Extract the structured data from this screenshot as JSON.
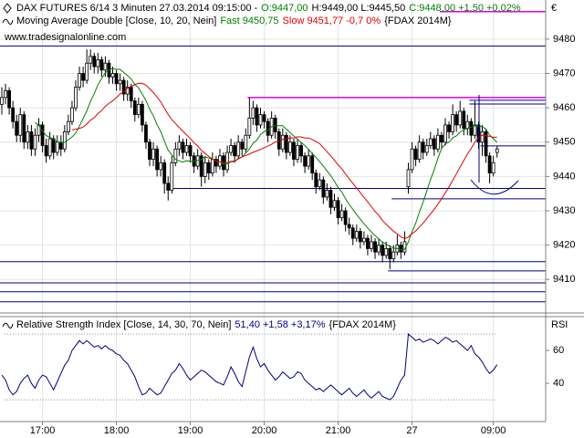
{
  "chart_data": [
    {
      "type": "candlestick",
      "title_parts": [
        {
          "text": "DAX FUTURES 6/14 3 Minuten  27.03.2014 09:15:00 -",
          "color": "#000000"
        },
        {
          "text": "O:9447,00",
          "color": "#008000"
        },
        {
          "text": "H:9449,00 L:9445,50",
          "color": "#000000"
        },
        {
          "text": "C:9448,00 +1,50 +0,02%",
          "color": "#008000"
        }
      ],
      "indicator_parts": [
        {
          "text": "Moving Average Double [Close, 10, 20, Nein]",
          "color": "#000000"
        },
        {
          "text": "Fast 9450,75",
          "color": "#008000"
        },
        {
          "text": "Slow 9451,77 -0,7 0%",
          "color": "#e00000"
        },
        {
          "text": "{FDAX 2014M}",
          "color": "#000000"
        }
      ],
      "source": "www.tradesignalonline.com",
      "unit": "€",
      "categories": [
        null,
        null,
        null,
        null,
        null,
        null,
        null,
        null,
        null,
        null,
        null,
        "17:00",
        null,
        null,
        null,
        null,
        null,
        null,
        null,
        null,
        null,
        null,
        null,
        null,
        null,
        null,
        null,
        null,
        null,
        null,
        null,
        "18:00",
        null,
        null,
        null,
        null,
        null,
        null,
        null,
        null,
        null,
        null,
        null,
        null,
        null,
        null,
        null,
        null,
        null,
        null,
        null,
        "19:00",
        null,
        null,
        null,
        null,
        null,
        null,
        null,
        null,
        null,
        null,
        null,
        null,
        null,
        null,
        null,
        null,
        null,
        null,
        null,
        "20:00",
        null,
        null,
        null,
        null,
        null,
        null,
        null,
        null,
        null,
        null,
        null,
        null,
        null,
        null,
        null,
        null,
        null,
        null,
        null,
        "21:00",
        null,
        null,
        null,
        null,
        null,
        null,
        null,
        null,
        null,
        null,
        null,
        null,
        null,
        null,
        null,
        null,
        null,
        null,
        null,
        "27",
        null,
        null,
        null,
        null,
        null,
        null,
        null,
        null,
        null,
        null,
        null,
        null,
        null,
        null,
        null,
        null,
        null,
        null,
        null,
        null,
        null,
        "09:00",
        null
      ],
      "open": [
        9461,
        9463,
        9465,
        9460,
        9456,
        9452,
        9458,
        9450,
        9453,
        9448,
        9452,
        9455,
        9449,
        9446,
        9451,
        9447,
        9450,
        9448,
        9453,
        9456,
        9460,
        9466,
        9470,
        9468,
        9473,
        9475,
        9472,
        9474,
        9471,
        9473,
        9469,
        9470,
        9467,
        9468,
        9464,
        9466,
        9462,
        9458,
        9461,
        9455,
        9450,
        9445,
        9448,
        9442,
        9444,
        9438,
        9436,
        9444,
        9448,
        9450,
        9447,
        9449,
        9446,
        9443,
        9446,
        9440,
        9444,
        9441,
        9445,
        9443,
        9446,
        9442,
        9447,
        9449,
        9446,
        9450,
        9448,
        9452,
        9457,
        9460,
        9455,
        9458,
        9456,
        9452,
        9457,
        9453,
        9448,
        9452,
        9447,
        9450,
        9445,
        9449,
        9446,
        9443,
        9446,
        9441,
        9437,
        9439,
        9434,
        9436,
        9431,
        9433,
        9428,
        9430,
        9426,
        9425,
        9422,
        9424,
        9421,
        9422,
        9419,
        9421,
        9418,
        9420,
        9417,
        9419,
        9416,
        9418,
        9420,
        9418,
        9437,
        9442,
        9448,
        9445,
        9450,
        9447,
        9449,
        9451,
        9448,
        9452,
        9450,
        9455,
        9453,
        9458,
        9455,
        9459,
        9454,
        9456,
        9452,
        9455,
        9450,
        9453,
        9446,
        9441,
        9447
      ],
      "high": [
        9466,
        9467,
        9466,
        9462,
        9458,
        9460,
        9459,
        9455,
        9455,
        9454,
        9457,
        9456,
        9451,
        9453,
        9452,
        9452,
        9452,
        9455,
        9458,
        9462,
        9468,
        9472,
        9472,
        9477,
        9477,
        9476,
        9476,
        9475,
        9475,
        9474,
        9472,
        9471,
        9470,
        9469,
        9468,
        9467,
        9463,
        9463,
        9462,
        9456,
        9451,
        9450,
        9449,
        9446,
        9445,
        9440,
        9446,
        9450,
        9452,
        9451,
        9451,
        9450,
        9447,
        9448,
        9447,
        9446,
        9445,
        9447,
        9446,
        9448,
        9447,
        9449,
        9451,
        9450,
        9452,
        9451,
        9454,
        9463,
        9462,
        9461,
        9460,
        9459,
        9457,
        9459,
        9458,
        9454,
        9454,
        9453,
        9452,
        9451,
        9451,
        9450,
        9447,
        9448,
        9447,
        9442,
        9441,
        9440,
        9438,
        9437,
        9435,
        9434,
        9432,
        9431,
        9428,
        9426,
        9426,
        9425,
        9424,
        9423,
        9423,
        9422,
        9422,
        9421,
        9421,
        9420,
        9420,
        9423,
        9421,
        9424,
        9444,
        9450,
        9449,
        9452,
        9451,
        9451,
        9453,
        9452,
        9454,
        9453,
        9457,
        9456,
        9461,
        9459,
        9462,
        9460,
        9458,
        9457,
        9462,
        9456,
        9455,
        9454,
        9447,
        9446,
        9449
      ],
      "low": [
        9458,
        9461,
        9458,
        9454,
        9450,
        9450,
        9448,
        9448,
        9446,
        9446,
        9450,
        9447,
        9444,
        9445,
        9445,
        9446,
        9446,
        9447,
        9452,
        9455,
        9459,
        9465,
        9466,
        9467,
        9471,
        9470,
        9470,
        9469,
        9469,
        9467,
        9467,
        9465,
        9465,
        9462,
        9462,
        9460,
        9456,
        9457,
        9453,
        9448,
        9443,
        9443,
        9440,
        9440,
        9435,
        9433,
        9435,
        9443,
        9446,
        9445,
        9446,
        9444,
        9441,
        9442,
        9437,
        9438,
        9439,
        9440,
        9441,
        9442,
        9440,
        9441,
        9446,
        9444,
        9445,
        9446,
        9447,
        9451,
        9455,
        9453,
        9454,
        9454,
        9450,
        9451,
        9451,
        9446,
        9447,
        9445,
        9446,
        9443,
        9444,
        9444,
        9441,
        9442,
        9439,
        9435,
        9436,
        9432,
        9433,
        9429,
        9430,
        9426,
        9427,
        9424,
        9423,
        9420,
        9421,
        9419,
        9420,
        9417,
        9418,
        9416,
        9417,
        9415,
        9416,
        9413,
        9415,
        9417,
        9416,
        9417,
        9435,
        9441,
        9443,
        9444,
        9445,
        9446,
        9448,
        9446,
        9447,
        9448,
        9449,
        9451,
        9452,
        9453,
        9454,
        9452,
        9452,
        9450,
        9451,
        9448,
        9446,
        9444,
        9438,
        9440,
        9445.5
      ],
      "close": [
        9463,
        9465,
        9460,
        9456,
        9452,
        9458,
        9450,
        9453,
        9448,
        9452,
        9455,
        9449,
        9446,
        9451,
        9447,
        9450,
        9448,
        9453,
        9456,
        9460,
        9466,
        9470,
        9468,
        9473,
        9475,
        9472,
        9474,
        9471,
        9473,
        9469,
        9470,
        9467,
        9468,
        9464,
        9466,
        9462,
        9458,
        9461,
        9455,
        9450,
        9445,
        9448,
        9442,
        9444,
        9438,
        9436,
        9444,
        9448,
        9450,
        9447,
        9449,
        9446,
        9443,
        9446,
        9440,
        9444,
        9441,
        9445,
        9443,
        9446,
        9442,
        9447,
        9449,
        9446,
        9450,
        9448,
        9452,
        9457,
        9460,
        9455,
        9458,
        9456,
        9452,
        9457,
        9453,
        9448,
        9452,
        9447,
        9450,
        9445,
        9449,
        9446,
        9443,
        9446,
        9441,
        9437,
        9439,
        9434,
        9436,
        9431,
        9433,
        9428,
        9430,
        9426,
        9425,
        9422,
        9424,
        9421,
        9422,
        9419,
        9421,
        9418,
        9420,
        9417,
        9419,
        9416,
        9418,
        9420,
        9418,
        9421,
        9442,
        9448,
        9445,
        9450,
        9447,
        9449,
        9451,
        9448,
        9452,
        9450,
        9455,
        9453,
        9458,
        9455,
        9459,
        9454,
        9456,
        9452,
        9455,
        9450,
        9453,
        9446,
        9441,
        9444,
        9448
      ],
      "up_color": "#ffffff",
      "down_color": "#000000",
      "overlays": [
        {
          "color": "#008000",
          "values": [
            null,
            null,
            null,
            null,
            null,
            null,
            null,
            null,
            null,
            9455.7,
            9454.9,
            9453.3,
            9451.9,
            9451.4,
            9450.9,
            9450.1,
            9449.9,
            9449.9,
            9450.7,
            9451.5,
            9452.6,
            9454.7,
            9456.9,
            9459.1,
            9461.9,
            9464.1,
            9466.7,
            9468.5,
            9470.2,
            9471.1,
            9471.5,
            9471.2,
            9471.2,
            9470.3,
            9469.4,
            9468.4,
            9466.8,
            9465.8,
            9464.0,
            9462.1,
            9459.6,
            9457.7,
            9455.1,
            9453.1,
            9450.3,
            9447.7,
            9446.3,
            9445.0,
            9444.5,
            9444.2,
            9444.6,
            9444.4,
            9444.5,
            9444.7,
            9444.9,
            9445.7,
            9445.4,
            9445.1,
            9444.4,
            9444.3,
            9443.6,
            9443.7,
            9444.3,
            9444.3,
            9445.3,
            9445.7,
            9446.8,
            9448.0,
            9449.7,
            9450.6,
            9452.2,
            9453.1,
            9453.4,
            9454.5,
            9454.8,
            9454.8,
            9454.8,
            9453.8,
            9452.8,
            9451.8,
            9450.9,
            9449.9,
            9449.0,
            9447.9,
            9446.7,
            9445.6,
            9444.3,
            9443.0,
            9441.6,
            9440.2,
            9438.6,
            9436.8,
            9435.5,
            9433.5,
            9431.9,
            9430.4,
            9428.9,
            9427.6,
            9426.2,
            9425.0,
            9423.8,
            9422.8,
            9421.8,
            9420.9,
            9420.3,
            9419.7,
            9419.1,
            9419.0,
            9418.6,
            9418.8,
            9420.9,
            9423.9,
            9426.4,
            9429.7,
            9432.5,
            9435.8,
            9439.1,
            9441.9,
            9445.3,
            9448.2,
            9449.5,
            9450.0,
            9451.3,
            9451.8,
            9453.0,
            9453.5,
            9454.0,
            9454.4,
            9454.7,
            9454.7,
            9454.5,
            9453.8,
            9452.1,
            9451.0,
            9449.9
          ]
        },
        {
          "color": "#e00000",
          "values": [
            null,
            null,
            null,
            null,
            null,
            null,
            null,
            null,
            null,
            null,
            null,
            null,
            null,
            null,
            null,
            null,
            null,
            null,
            null,
            9453.6,
            9453.75,
            9454.0,
            9454.4,
            9455.25,
            9456.4,
            9457.1,
            9458.3,
            9459.2,
            9460.45,
            9461.3,
            9462.05,
            9462.95,
            9464.05,
            9464.7,
            9465.65,
            9466.25,
            9466.75,
            9467.15,
            9467.1,
            9466.6,
            9465.55,
            9464.45,
            9463.15,
            9461.7,
            9459.85,
            9458.05,
            9456.55,
            9455.4,
            9454.25,
            9453.15,
            9452.1,
            9451.05,
            9449.8,
            9448.9,
            9447.6,
            9446.7,
            9445.85,
            9445.05,
            9444.45,
            9444.25,
            9444.1,
            9444.05,
            9444.4,
            9444.5,
            9445.1,
            9445.7,
            9446.1,
            9446.55,
            9447.05,
            9447.45,
            9447.9,
            9448.4,
            9448.85,
            9449.4,
            9450.05,
            9450.25,
            9450.8,
            9450.9,
            9451.25,
            9451.2,
            9451.55,
            9451.5,
            9451.2,
            9451.2,
            9450.75,
            9450.2,
            9449.55,
            9448.4,
            9447.2,
            9446.0,
            9444.75,
            9443.35,
            9442.25,
            9440.7,
            9439.3,
            9438.0,
            9436.6,
            9435.3,
            9433.9,
            9432.6,
            9431.2,
            9429.8,
            9428.65,
            9427.2,
            9426.1,
            9425.05,
            9424.0,
            9423.3,
            9422.4,
            9421.9,
            9422.35,
            9423.35,
            9424.1,
            9425.3,
            9426.4,
            9427.75,
            9429.1,
            9430.45,
            9431.95,
            9433.5,
            9435.2,
            9436.95,
            9438.85,
            9440.75,
            9442.75,
            9444.65,
            9446.55,
            9448.15,
            9450.0,
            9451.45,
            9452.0,
            9451.9,
            9451.7,
            9451.4,
            9451.45
          ]
        }
      ],
      "hlines": [
        {
          "value": 9488,
          "color": "#e000e0",
          "from": 119
        },
        {
          "value": 9478,
          "color": "#000080",
          "from": 0
        },
        {
          "value": 9463,
          "color": "#e000e0",
          "from": 67
        },
        {
          "value": 9462.2,
          "color": "#000080",
          "from": 127
        },
        {
          "value": 9461.1,
          "color": "#000080",
          "from": 127
        },
        {
          "value": 9448.9,
          "color": "#000080",
          "from": 130
        },
        {
          "value": 9436.5,
          "color": "#000080",
          "from": 45
        },
        {
          "value": 9433.5,
          "color": "#000080",
          "from": 106
        },
        {
          "value": 9415.2,
          "color": "#000080",
          "from": 0
        },
        {
          "value": 9412.5,
          "color": "#000080",
          "from": 105
        },
        {
          "value": 9409,
          "color": "#000080",
          "from": 0
        },
        {
          "value": 9406.4,
          "color": "#000080",
          "from": 0
        },
        {
          "value": 9403.5,
          "color": "#000080",
          "from": 0
        }
      ],
      "ylim": [
        9400.5,
        9491.4
      ],
      "yticks": [
        9410,
        9420,
        9430,
        9440,
        9450,
        9460,
        9470,
        9480
      ],
      "grid": true
    },
    {
      "type": "line",
      "title_parts": [
        {
          "text": "Relative Strength Index [Close, 14, 30, 70, Nein]",
          "color": "#000000"
        },
        {
          "text": "51,40 +1,58 +3,17%",
          "color": "#000080"
        },
        {
          "text": "{FDAX 2014M}",
          "color": "#000000"
        }
      ],
      "ylabel": "RSI",
      "color": "#000080",
      "values": [
        45,
        42,
        36,
        33,
        35,
        40,
        43,
        45,
        40,
        37,
        42,
        45,
        44,
        40,
        36,
        41,
        46,
        51,
        54,
        60,
        63,
        66,
        64,
        66,
        64,
        62,
        63,
        61,
        63,
        61,
        60,
        58,
        57,
        54,
        52,
        48,
        44,
        38,
        33,
        34,
        37,
        35,
        33,
        34,
        38,
        42,
        46,
        48,
        52,
        49,
        45,
        42,
        44,
        46,
        48,
        47,
        45,
        43,
        41,
        40,
        39,
        44,
        50,
        46,
        41,
        38,
        47,
        56,
        62,
        55,
        50,
        52,
        48,
        45,
        42,
        44,
        47,
        45,
        43,
        44,
        47,
        46,
        42,
        40,
        38,
        36,
        37,
        35,
        37,
        39,
        37,
        35,
        33,
        35,
        37,
        34,
        32,
        34,
        36,
        33,
        31,
        33,
        35,
        32,
        31,
        30,
        32,
        37,
        42,
        45,
        70,
        68,
        66,
        67,
        65,
        66,
        67,
        66,
        64,
        66,
        68,
        67,
        65,
        66,
        64,
        62,
        60,
        63,
        58,
        56,
        53,
        49,
        46,
        48,
        51.4
      ],
      "levels": [
        30,
        70
      ],
      "ylim": [
        16.7,
        80.6
      ],
      "yticks": [
        40,
        60
      ]
    }
  ]
}
